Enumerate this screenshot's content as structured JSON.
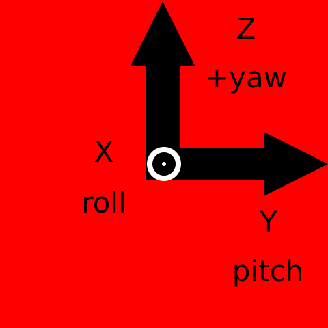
{
  "background_color": "#ff0000",
  "arrow_color": "#000000",
  "marker_color": "#ffffff",
  "axes": {
    "z": {
      "letter": "Z",
      "caption": "+yaw"
    },
    "x": {
      "letter": "X",
      "caption": "roll"
    },
    "y": {
      "letter": "Y",
      "caption": "pitch"
    }
  }
}
